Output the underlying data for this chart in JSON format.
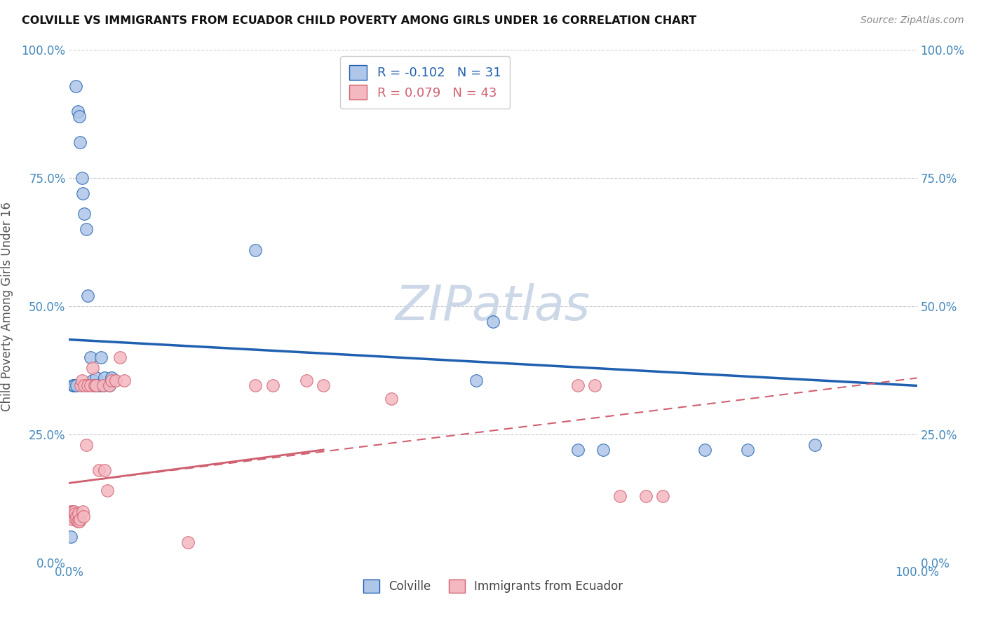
{
  "title": "COLVILLE VS IMMIGRANTS FROM ECUADOR CHILD POVERTY AMONG GIRLS UNDER 16 CORRELATION CHART",
  "source": "Source: ZipAtlas.com",
  "ylabel": "Child Poverty Among Girls Under 16",
  "xlim": [
    0,
    1
  ],
  "ylim": [
    0,
    1
  ],
  "ytick_positions": [
    0,
    0.25,
    0.5,
    0.75,
    1.0
  ],
  "ytick_labels": [
    "0.0%",
    "25.0%",
    "50.0%",
    "75.0%",
    "100.0%"
  ],
  "xtick_positions": [
    0,
    1.0
  ],
  "xtick_labels": [
    "0.0%",
    "100.0%"
  ],
  "colville_R": "-0.102",
  "colville_N": "31",
  "ecuador_R": "0.079",
  "ecuador_N": "43",
  "colville_color": "#aec6e8",
  "ecuador_color": "#f4b8c1",
  "colville_line_color": "#2060b0",
  "ecuador_line_color": "#d06070",
  "colville_x": [
    0.008,
    0.01,
    0.012,
    0.013,
    0.015,
    0.016,
    0.018,
    0.02,
    0.022,
    0.025,
    0.028,
    0.03,
    0.032,
    0.035,
    0.038,
    0.04,
    0.042,
    0.048,
    0.05,
    0.22,
    0.48,
    0.5,
    0.6,
    0.63,
    0.75,
    0.8,
    0.88,
    0.002,
    0.005,
    0.006,
    0.009
  ],
  "colville_y": [
    0.93,
    0.88,
    0.87,
    0.82,
    0.75,
    0.72,
    0.68,
    0.65,
    0.52,
    0.4,
    0.355,
    0.345,
    0.36,
    0.345,
    0.4,
    0.345,
    0.36,
    0.345,
    0.36,
    0.61,
    0.355,
    0.47,
    0.22,
    0.22,
    0.22,
    0.22,
    0.23,
    0.05,
    0.345,
    0.345,
    0.345
  ],
  "ecuador_x": [
    0.002,
    0.003,
    0.004,
    0.005,
    0.006,
    0.007,
    0.008,
    0.009,
    0.01,
    0.011,
    0.012,
    0.013,
    0.014,
    0.015,
    0.016,
    0.017,
    0.018,
    0.02,
    0.022,
    0.025,
    0.028,
    0.03,
    0.032,
    0.035,
    0.04,
    0.042,
    0.045,
    0.048,
    0.05,
    0.055,
    0.06,
    0.065,
    0.14,
    0.22,
    0.24,
    0.28,
    0.3,
    0.38,
    0.6,
    0.62,
    0.65,
    0.68,
    0.7
  ],
  "ecuador_y": [
    0.1,
    0.09,
    0.085,
    0.1,
    0.1,
    0.095,
    0.085,
    0.09,
    0.08,
    0.095,
    0.08,
    0.085,
    0.345,
    0.355,
    0.1,
    0.09,
    0.345,
    0.23,
    0.345,
    0.345,
    0.38,
    0.345,
    0.345,
    0.18,
    0.345,
    0.18,
    0.14,
    0.345,
    0.355,
    0.355,
    0.4,
    0.355,
    0.04,
    0.345,
    0.345,
    0.355,
    0.345,
    0.32,
    0.345,
    0.345,
    0.13,
    0.13,
    0.13
  ],
  "watermark": "ZIPatlas",
  "watermark_color": "#ccd8e8",
  "grid_color": "#cccccc",
  "background_color": "#ffffff",
  "colville_trend_x": [
    0.0,
    1.0
  ],
  "colville_trend_y": [
    0.435,
    0.345
  ],
  "ecuador_trend_x": [
    0.0,
    1.0
  ],
  "ecuador_trend_y": [
    0.155,
    0.36
  ]
}
